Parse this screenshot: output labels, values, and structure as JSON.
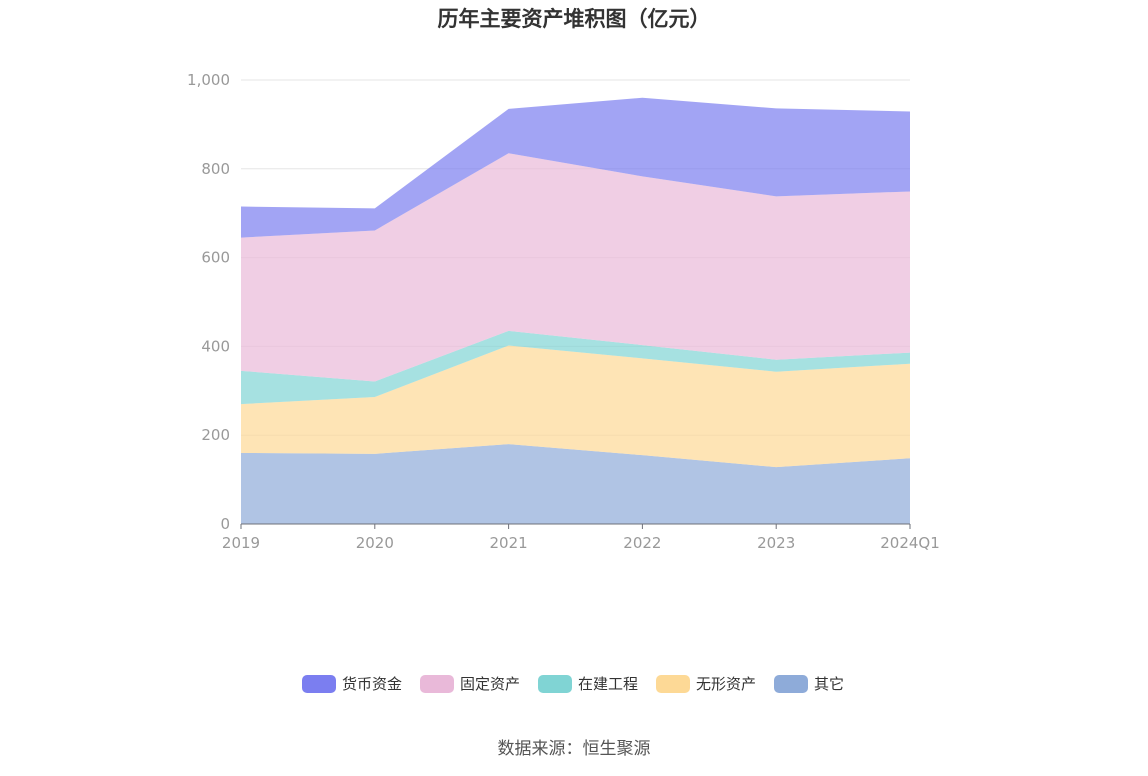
{
  "chart_data": {
    "type": "area",
    "stacked": true,
    "title": "历年主要资产堆积图（亿元）",
    "categories": [
      "2019",
      "2020",
      "2021",
      "2022",
      "2023",
      "2024Q1"
    ],
    "ylim": [
      0,
      1000
    ],
    "yticks": [
      0,
      200,
      400,
      600,
      800,
      1000
    ],
    "ytick_labels": [
      "0",
      "200",
      "400",
      "600",
      "800",
      "1,000"
    ],
    "grid": true,
    "legend_position": "bottom",
    "series": [
      {
        "name": "其它",
        "color": "#8eabd9",
        "values": [
          160,
          158,
          180,
          155,
          128,
          148
        ]
      },
      {
        "name": "无形资产",
        "color": "#fdd996",
        "values": [
          110,
          128,
          222,
          218,
          215,
          213
        ]
      },
      {
        "name": "在建工程",
        "color": "#80d4d4",
        "values": [
          75,
          35,
          33,
          30,
          27,
          25
        ]
      },
      {
        "name": "固定资产",
        "color": "#e9b9d9",
        "values": [
          300,
          340,
          400,
          380,
          368,
          363
        ]
      },
      {
        "name": "货币资金",
        "color": "#7b7ef0",
        "values": [
          70,
          50,
          100,
          177,
          198,
          180
        ]
      }
    ],
    "legend_order": [
      "货币资金",
      "固定资产",
      "在建工程",
      "无形资产",
      "其它"
    ]
  },
  "source_text": "数据来源：恒生聚源"
}
